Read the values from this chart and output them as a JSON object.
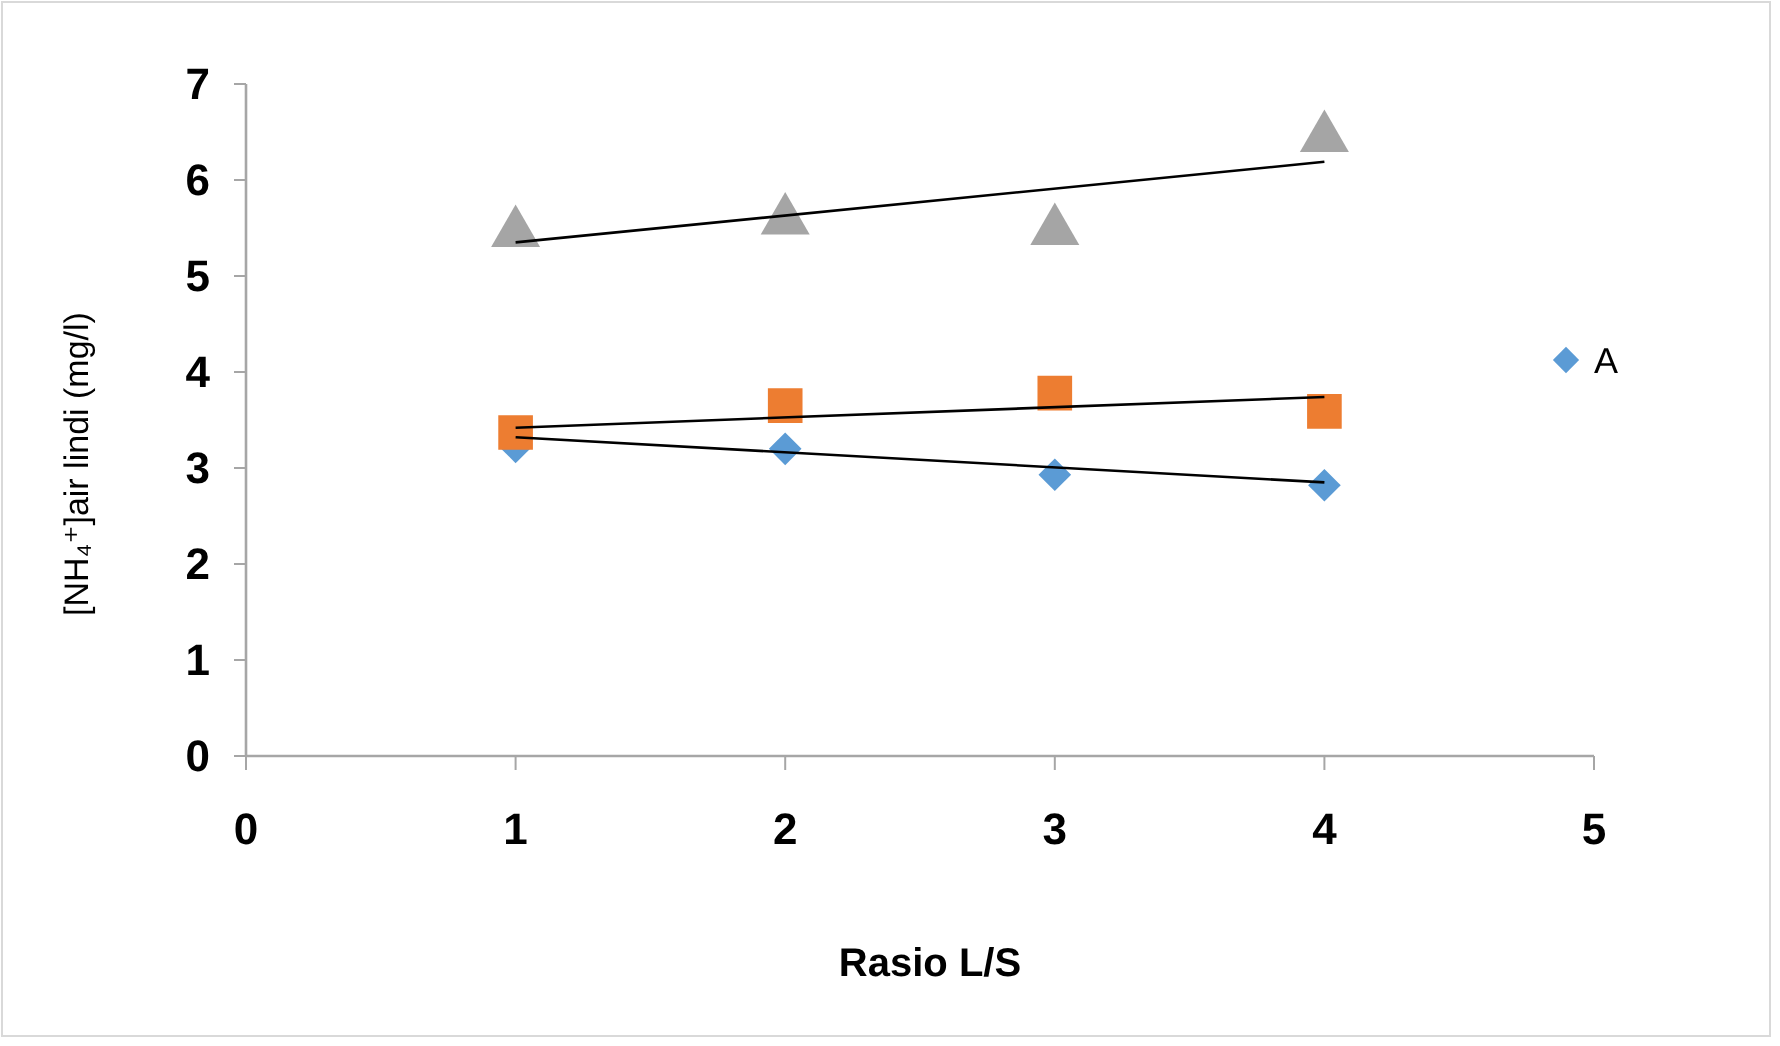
{
  "chart_data": {
    "type": "scatter",
    "xlabel": "Rasio L/S",
    "ylabel": "[NH₄⁺]air lindi (mg/l)",
    "xlim": [
      0,
      5
    ],
    "xticks": [
      0,
      1,
      2,
      3,
      4,
      5
    ],
    "ylim": [
      0,
      7
    ],
    "yticks": [
      0,
      1,
      2,
      3,
      4,
      5,
      6,
      7
    ],
    "grid": false,
    "legend": "right",
    "series": [
      {
        "name": "A",
        "marker": "diamond",
        "color": "#5b9bd5",
        "x": [
          1,
          2,
          3,
          4
        ],
        "values": [
          3.22,
          3.2,
          2.93,
          2.82
        ]
      },
      {
        "marker": "square",
        "color": "#ed7d31",
        "x": [
          1,
          2,
          3,
          4
        ],
        "values": [
          3.37,
          3.65,
          3.78,
          3.59
        ]
      },
      {
        "marker": "triangle",
        "color": "#a5a5a5",
        "x": [
          1,
          2,
          3,
          4
        ],
        "values": [
          5.45,
          5.58,
          5.47,
          6.44
        ]
      },
      {
        "type": "line",
        "marker": "none",
        "color": "#000000",
        "x": [
          1,
          4
        ],
        "values": [
          3.32,
          2.85
        ]
      },
      {
        "type": "line",
        "marker": "none",
        "color": "#000000",
        "x": [
          1,
          4
        ],
        "values": [
          3.42,
          3.74
        ]
      },
      {
        "type": "line",
        "marker": "none",
        "color": "#000000",
        "x": [
          1,
          4
        ],
        "values": [
          5.35,
          6.19
        ]
      }
    ]
  }
}
